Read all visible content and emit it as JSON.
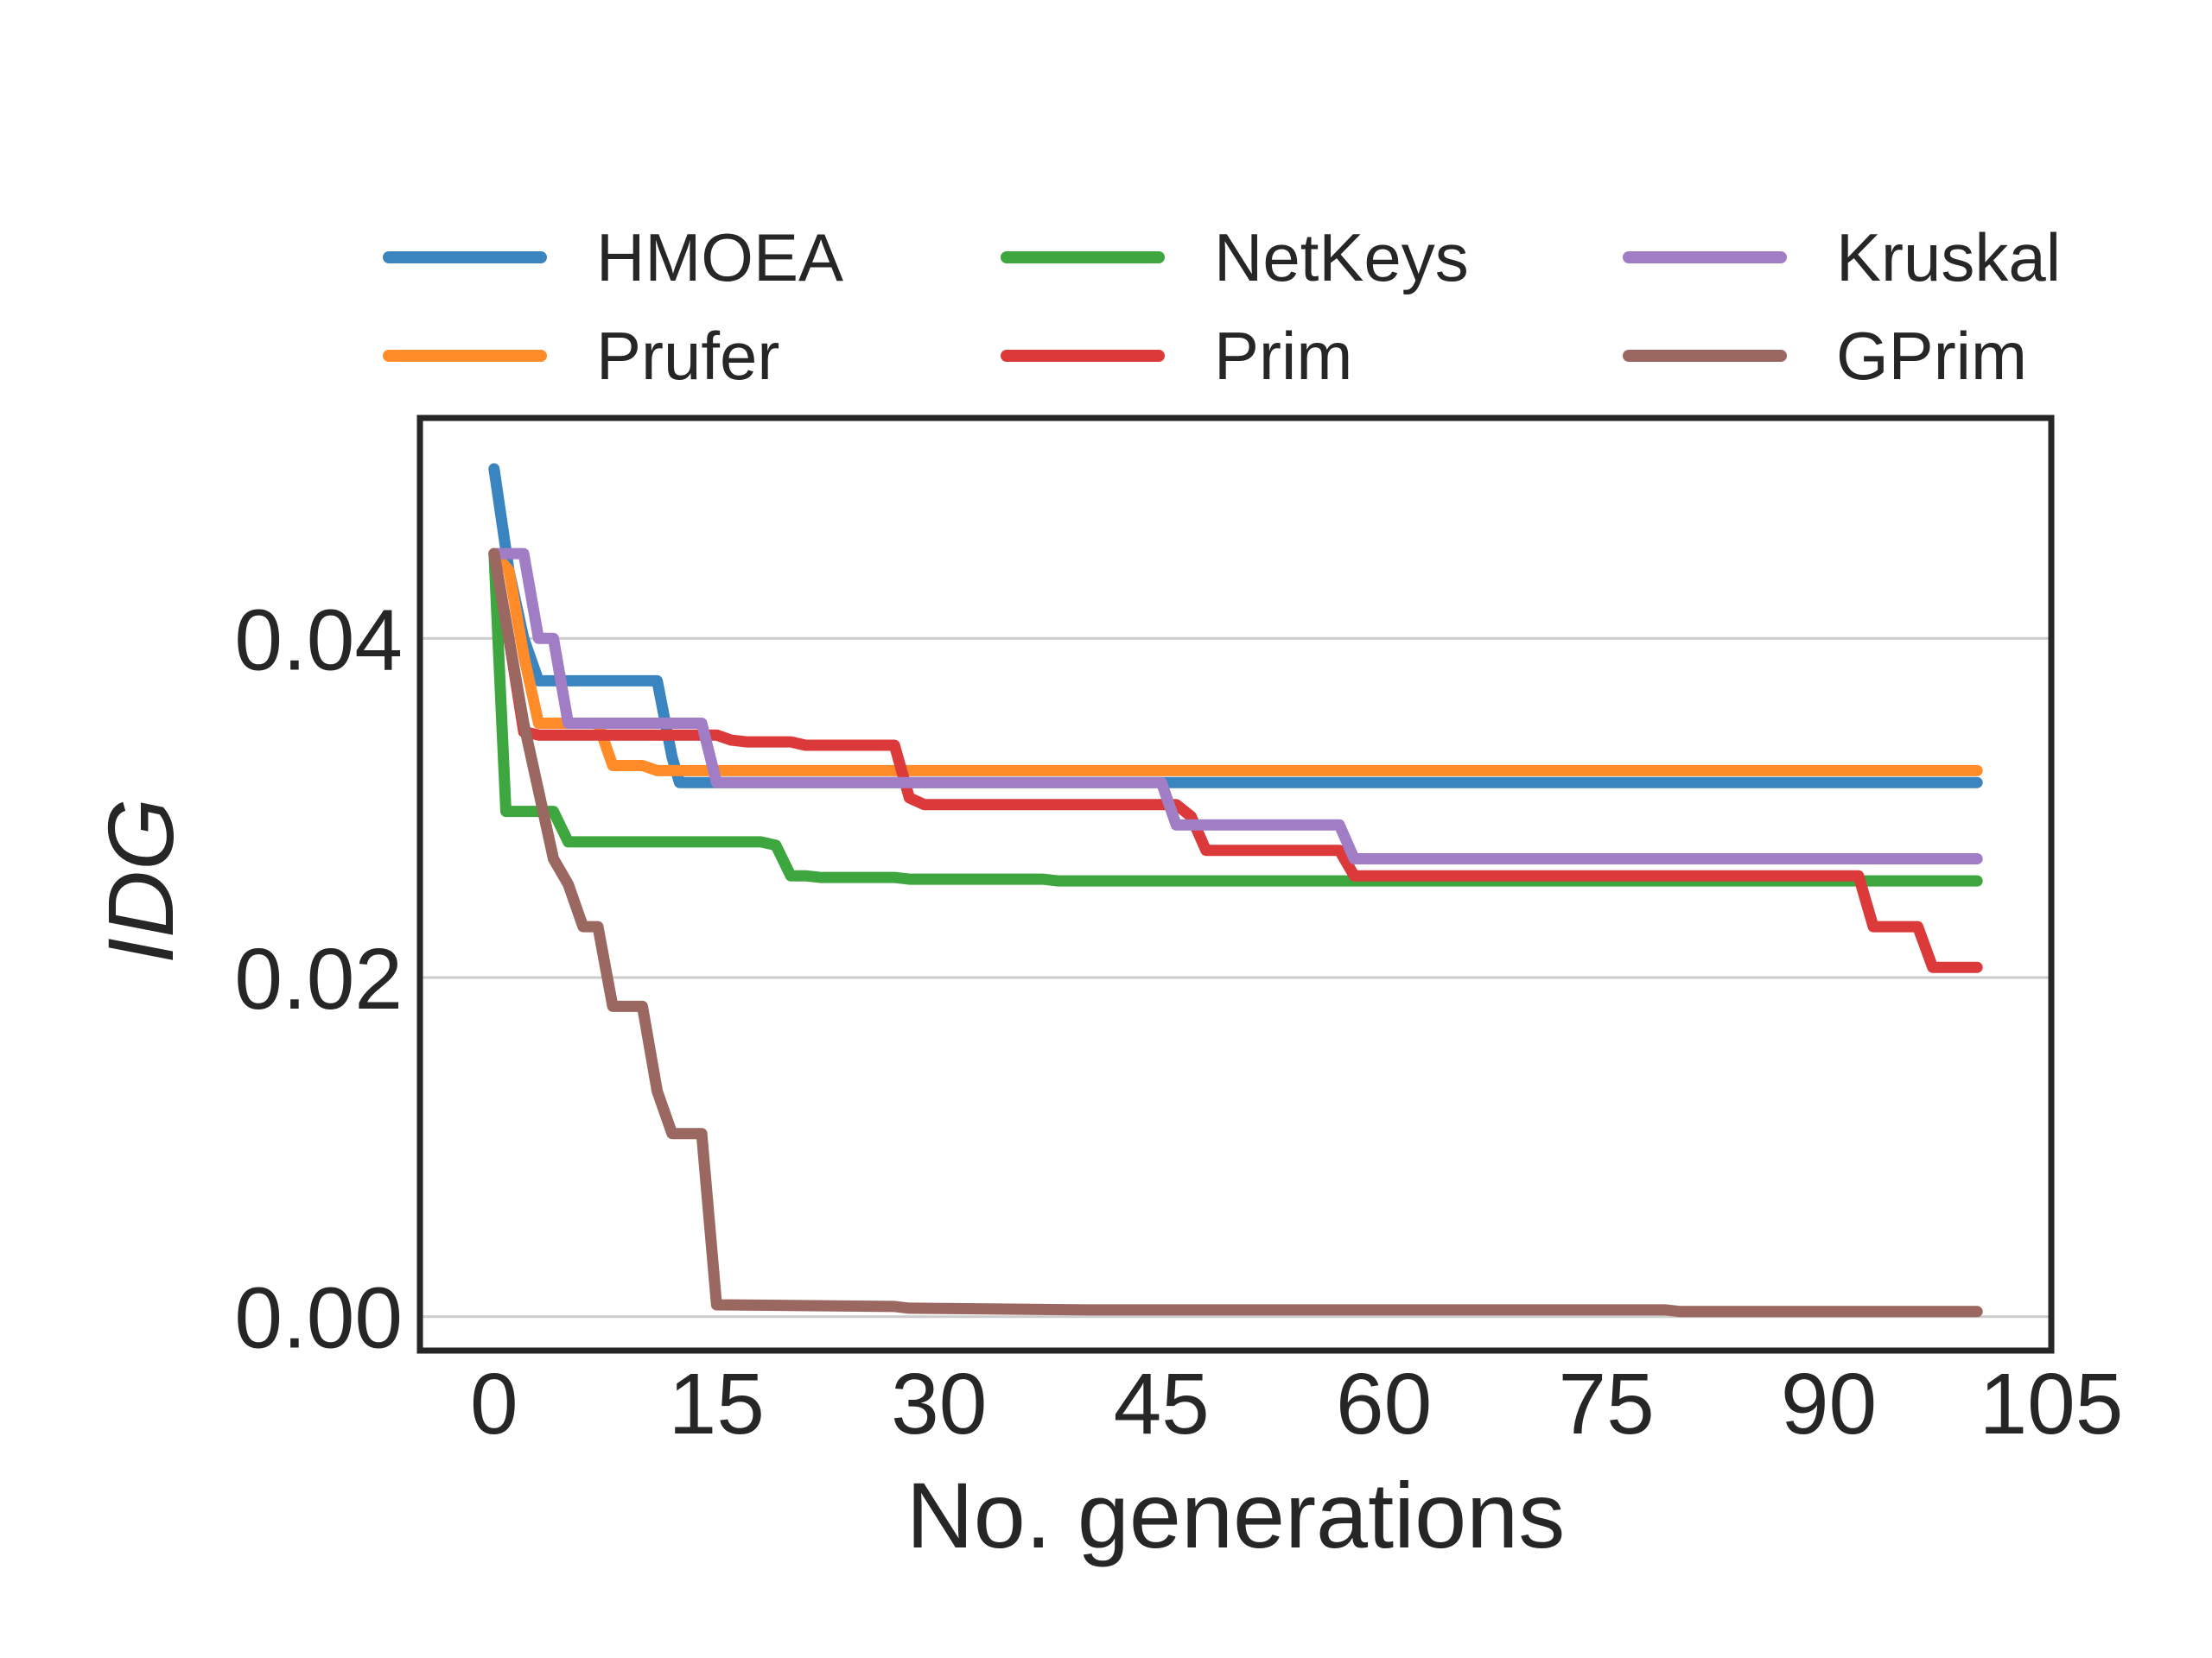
{
  "chart_data": {
    "type": "line",
    "title": "",
    "xlabel": "No. generations",
    "ylabel": "IDG",
    "xlim": [
      -5,
      105
    ],
    "ylim": [
      -0.002,
      0.053
    ],
    "xticks": [
      0,
      15,
      30,
      45,
      60,
      75,
      90,
      105
    ],
    "xtick_labels": [
      "0",
      "15",
      "30",
      "45",
      "60",
      "75",
      "90",
      "105"
    ],
    "yticks": [
      0.0,
      0.02,
      0.04
    ],
    "ytick_labels": [
      "0.00",
      "0.02",
      "0.04"
    ],
    "grid": "horizontal",
    "legend": {
      "placement": "top, above plot, 3 columns",
      "columns": 3
    },
    "series": [
      {
        "name": "HMOEA",
        "color": "#3a85c0",
        "points": [
          [
            0,
            0.05
          ],
          [
            1,
            0.044
          ],
          [
            2,
            0.04
          ],
          [
            3,
            0.0375
          ],
          [
            11,
            0.0375
          ],
          [
            12,
            0.033
          ],
          [
            12.5,
            0.0315
          ],
          [
            100,
            0.0315
          ]
        ]
      },
      {
        "name": "Prufer",
        "color": "#ff8c28",
        "points": [
          [
            0,
            0.045
          ],
          [
            1,
            0.044
          ],
          [
            2,
            0.039
          ],
          [
            3,
            0.035
          ],
          [
            7,
            0.035
          ],
          [
            8,
            0.0325
          ],
          [
            10,
            0.0325
          ],
          [
            11,
            0.0322
          ],
          [
            100,
            0.0322
          ]
        ]
      },
      {
        "name": "NetKeys",
        "color": "#3ea63e",
        "points": [
          [
            0,
            0.045
          ],
          [
            0.8,
            0.0298
          ],
          [
            4,
            0.0298
          ],
          [
            5,
            0.028
          ],
          [
            18,
            0.028
          ],
          [
            19,
            0.0278
          ],
          [
            20,
            0.026
          ],
          [
            21,
            0.026
          ],
          [
            22,
            0.0259
          ],
          [
            27,
            0.0259
          ],
          [
            28,
            0.0258
          ],
          [
            37,
            0.0258
          ],
          [
            38,
            0.0257
          ],
          [
            100,
            0.0257
          ]
        ]
      },
      {
        "name": "Prim",
        "color": "#dc3a3a",
        "points": [
          [
            0,
            0.045
          ],
          [
            1,
            0.04
          ],
          [
            2,
            0.0345
          ],
          [
            3,
            0.0343
          ],
          [
            15,
            0.0343
          ],
          [
            16,
            0.034
          ],
          [
            17,
            0.0339
          ],
          [
            20,
            0.0339
          ],
          [
            21,
            0.0337
          ],
          [
            27,
            0.0337
          ],
          [
            28,
            0.0306
          ],
          [
            29,
            0.0302
          ],
          [
            46,
            0.0302
          ],
          [
            47,
            0.0295
          ],
          [
            48,
            0.0275
          ],
          [
            57,
            0.0275
          ],
          [
            58,
            0.026
          ],
          [
            92,
            0.026
          ],
          [
            93,
            0.023
          ],
          [
            96,
            0.023
          ],
          [
            97,
            0.0206
          ],
          [
            100,
            0.0206
          ]
        ]
      },
      {
        "name": "Kruskal",
        "color": "#a07dc4",
        "points": [
          [
            0,
            0.045
          ],
          [
            2,
            0.045
          ],
          [
            3,
            0.04
          ],
          [
            4,
            0.04
          ],
          [
            5,
            0.035
          ],
          [
            14,
            0.035
          ],
          [
            15,
            0.0315
          ],
          [
            45,
            0.0315
          ],
          [
            46,
            0.029
          ],
          [
            57,
            0.029
          ],
          [
            58,
            0.027
          ],
          [
            100,
            0.027
          ]
        ]
      },
      {
        "name": "GPrim",
        "color": "#9a6860",
        "points": [
          [
            0,
            0.045
          ],
          [
            1,
            0.04
          ],
          [
            2,
            0.035
          ],
          [
            3,
            0.031
          ],
          [
            4,
            0.027
          ],
          [
            5,
            0.0255
          ],
          [
            6,
            0.023
          ],
          [
            7,
            0.023
          ],
          [
            8,
            0.0183
          ],
          [
            10,
            0.0183
          ],
          [
            11,
            0.0133
          ],
          [
            12,
            0.0108
          ],
          [
            14,
            0.0108
          ],
          [
            15,
            0.0007
          ],
          [
            27,
            0.0006
          ],
          [
            28,
            0.0005
          ],
          [
            40,
            0.0004
          ],
          [
            79,
            0.0004
          ],
          [
            80,
            0.0003
          ],
          [
            100,
            0.0003
          ]
        ]
      }
    ]
  }
}
